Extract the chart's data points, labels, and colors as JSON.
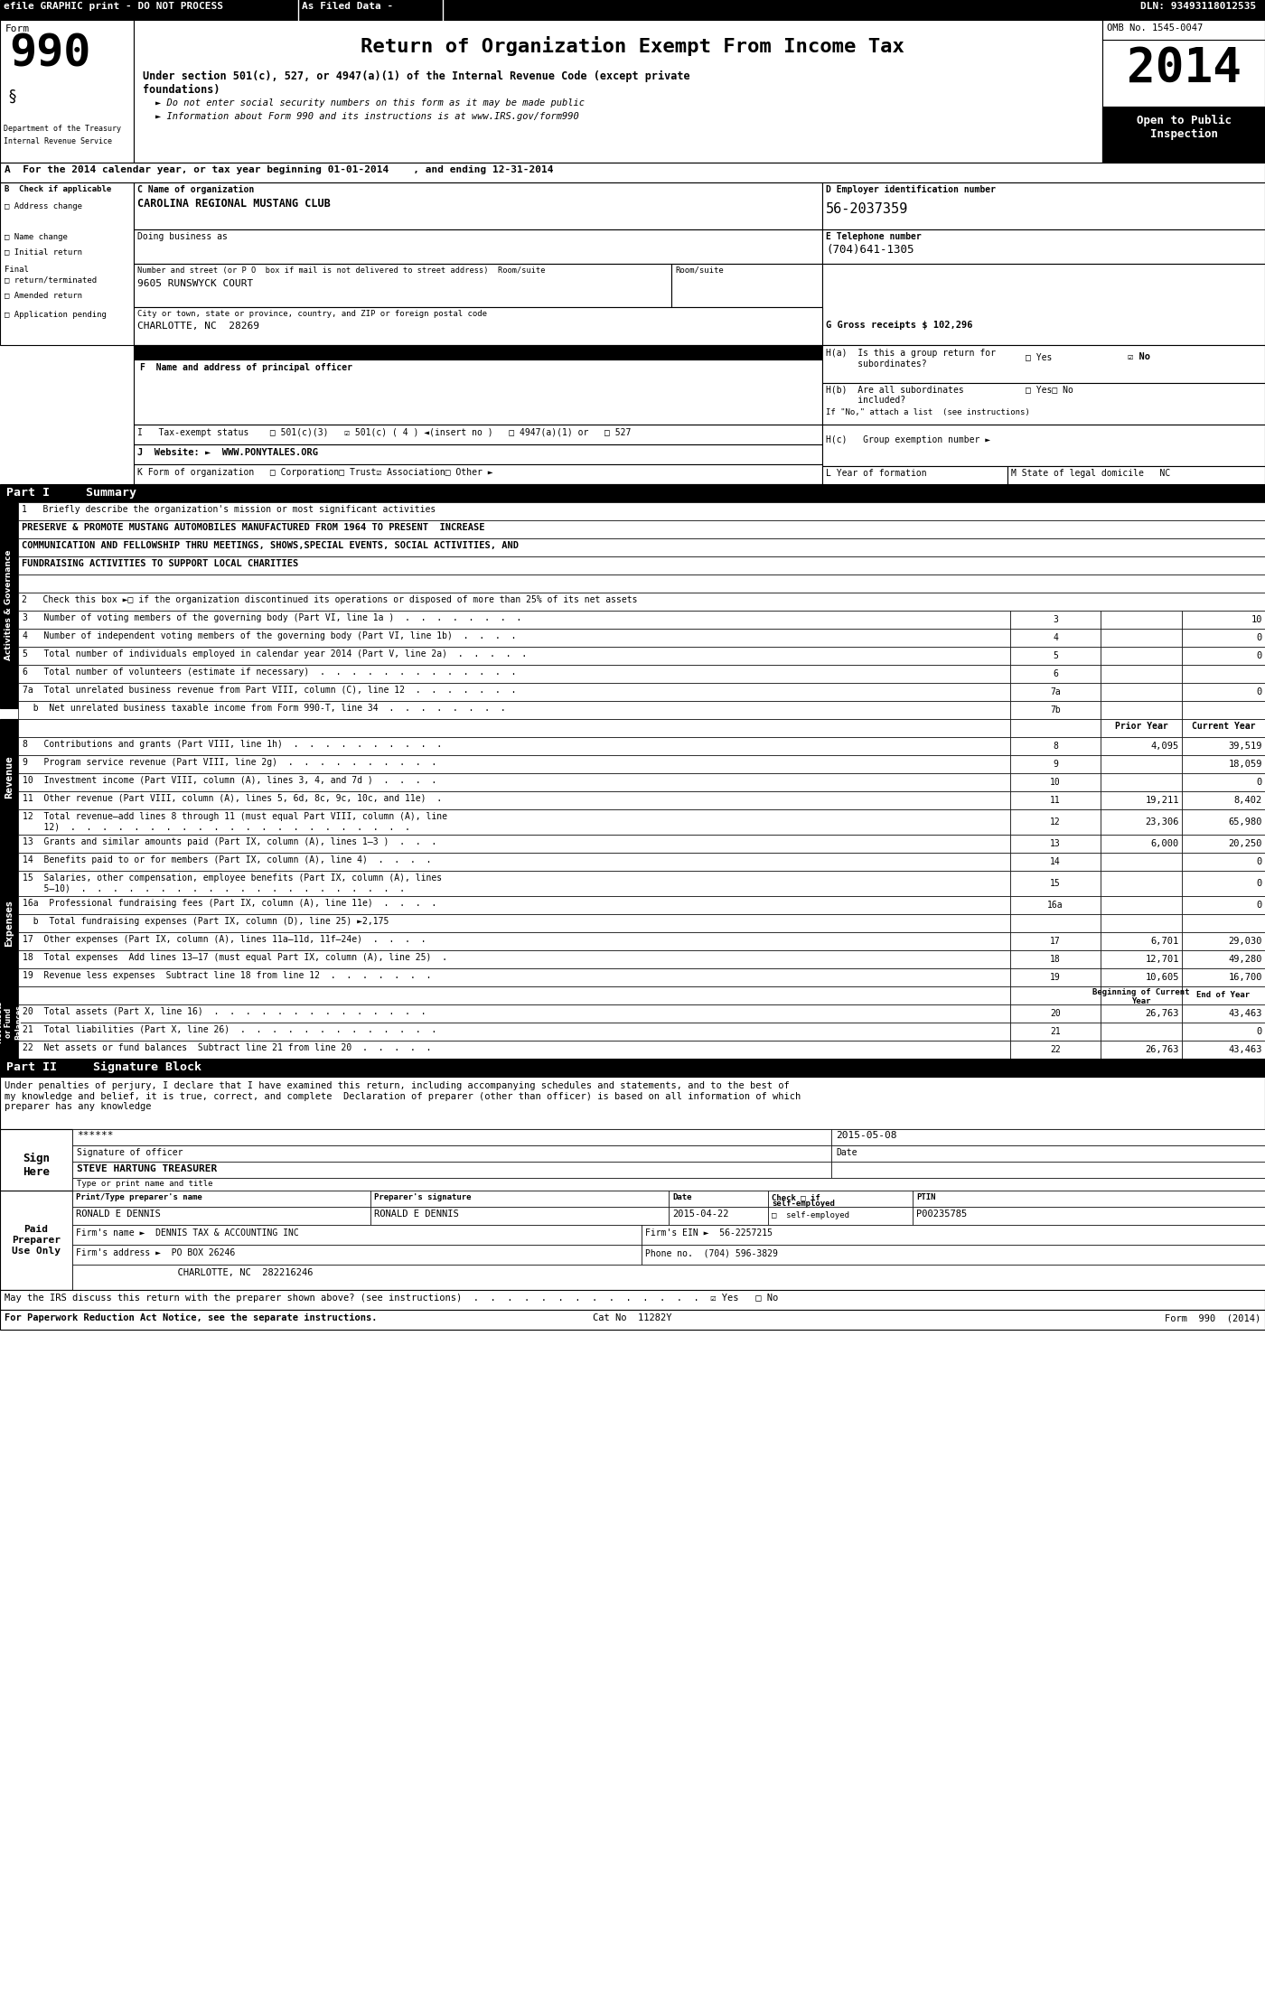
{
  "title": "Return of Organization Exempt From Income Tax",
  "subtitle1": "Under section 501(c), 527, or 4947(a)(1) of the Internal Revenue Code (except private",
  "subtitle1b": "foundations)",
  "subtitle2": "► Do not enter social security numbers on this form as it may be made public",
  "subtitle3": "► Information about Form 990 and its instructions is at www.IRS.gov/form990",
  "efile_left": "efile GRAPHIC print - DO NOT PROCESS",
  "efile_mid": "As Filed Data -",
  "efile_right": "DLN: 93493118012535",
  "form_number": "990",
  "year": "2014",
  "omb": "OMB No. 1545-0047",
  "open_to_public": "Open to Public\nInspection",
  "dept": "Department of the Treasury",
  "irs": "Internal Revenue Service",
  "section_a": "A  For the 2014 calendar year, or tax year beginning 01-01-2014    , and ending 12-31-2014",
  "org_name_label": "C Name of organization",
  "org_name": "CAROLINA REGIONAL MUSTANG CLUB",
  "dba_label": "Doing business as",
  "ein_label": "D Employer identification number",
  "ein": "56-2037359",
  "address_label": "Number and street (or P O  box if mail is not delivered to street address)  Room/suite",
  "address": "9605 RUNSWYCK COURT",
  "room_suite_label": "Room/suite",
  "phone_label": "E Telephone number",
  "phone": "(704)641-1305",
  "city_label": "City or town, state or province, country, and ZIP or foreign postal code",
  "city": "CHARLOTTE, NC  28269",
  "gross_label": "G Gross receipts $",
  "gross_receipts": "G Gross receipts $ 102,296",
  "principal_officer_label": "F  Name and address of principal officer",
  "ha_line1": "H(a)  Is this a group return for",
  "ha_line2": "      subordinates?",
  "ha_yes": "□ Yes",
  "ha_no": "☑ No",
  "hb_line1": "H(b)  Are all subordinates",
  "hb_line2": "      included?",
  "hb_yes": "□ Yes",
  "hb_no": "□ No",
  "hb_note": "If \"No,\" attach a list  (see instructions)",
  "tax_status": "I   Tax-exempt status    □ 501(c)(3)   ☑ 501(c) ( 4 ) ◄(insert no )   □ 4947(a)(1) or   □ 527",
  "website": "J  Website: ►  WWW.PONYTALES.ORG",
  "hc_label": "H(c)   Group exemption number ►",
  "form_org": "K Form of organization   □ Corporation□ Trust☑ Association□ Other ►",
  "year_formed": "L Year of formation",
  "state_domicile": "M State of legal domicile   NC",
  "part1_title": "Part I     Summary",
  "activity_label": "1   Briefly describe the organization's mission or most significant activities",
  "activity_text1": "PRESERVE & PROMOTE MUSTANG AUTOMOBILES MANUFACTURED FROM 1964 TO PRESENT  INCREASE",
  "activity_text2": "COMMUNICATION AND FELLOWSHIP THRU MEETINGS, SHOWS,SPECIAL EVENTS, SOCIAL ACTIVITIES, AND",
  "activity_text3": "FUNDRAISING ACTIVITIES TO SUPPORT LOCAL CHARITIES",
  "line2": "2   Check this box ►□ if the organization discontinued its operations or disposed of more than 25% of its net assets",
  "line3": "3   Number of voting members of the governing body (Part VI, line 1a )  .  .  .  .  .  .  .  .",
  "line3_num": "3",
  "line3_val": "10",
  "line4": "4   Number of independent voting members of the governing body (Part VI, line 1b)  .  .  .  .",
  "line4_num": "4",
  "line4_val": "0",
  "line5": "5   Total number of individuals employed in calendar year 2014 (Part V, line 2a)  .  .  .  .  .",
  "line5_num": "5",
  "line5_val": "0",
  "line6": "6   Total number of volunteers (estimate if necessary)  .  .  .  .  .  .  .  .  .  .  .  .  .",
  "line6_num": "6",
  "line6_val": "",
  "line7a": "7a  Total unrelated business revenue from Part VIII, column (C), line 12  .  .  .  .  .  .  .",
  "line7a_num": "7a",
  "line7a_val": "0",
  "line7b": "  b  Net unrelated business taxable income from Form 990-T, line 34  .  .  .  .  .  .  .  .",
  "line7b_num": "7b",
  "line7b_val": "",
  "prior_year_label": "Prior Year",
  "current_year_label": "Current Year",
  "line8": "8   Contributions and grants (Part VIII, line 1h)  .  .  .  .  .  .  .  .  .  .",
  "line8_num": "8",
  "line8_prior": "4,095",
  "line8_curr": "39,519",
  "line9": "9   Program service revenue (Part VIII, line 2g)  .  .  .  .  .  .  .  .  .  .",
  "line9_num": "9",
  "line9_prior": "",
  "line9_curr": "18,059",
  "line10": "10  Investment income (Part VIII, column (A), lines 3, 4, and 7d )  .  .  .  .",
  "line10_num": "10",
  "line10_prior": "",
  "line10_curr": "0",
  "line11": "11  Other revenue (Part VIII, column (A), lines 5, 6d, 8c, 9c, 10c, and 11e)  .",
  "line11_num": "11",
  "line11_prior": "19,211",
  "line11_curr": "8,402",
  "line12a": "12  Total revenue—add lines 8 through 11 (must equal Part VIII, column (A), line",
  "line12b": "    12)  .  .  .  .  .  .  .  .  .  .  .  .  .  .  .  .  .  .  .  .  .  .",
  "line12_num": "12",
  "line12_prior": "23,306",
  "line12_curr": "65,980",
  "line13": "13  Grants and similar amounts paid (Part IX, column (A), lines 1–3 )  .  .  .",
  "line13_num": "13",
  "line13_prior": "6,000",
  "line13_curr": "20,250",
  "line14": "14  Benefits paid to or for members (Part IX, column (A), line 4)  .  .  .  .",
  "line14_num": "14",
  "line14_prior": "",
  "line14_curr": "0",
  "line15a": "15  Salaries, other compensation, employee benefits (Part IX, column (A), lines",
  "line15b": "    5–10)  .  .  .  .  .  .  .  .  .  .  .  .  .  .  .  .  .  .  .  .  .",
  "line15_num": "15",
  "line15_prior": "",
  "line15_curr": "0",
  "line16a_text": "16a  Professional fundraising fees (Part IX, column (A), line 11e)  .  .  .  .",
  "line16a_num": "16a",
  "line16a_prior": "",
  "line16a_curr": "0",
  "line16b_text": "  b  Total fundraising expenses (Part IX, column (D), line 25) ►2,175",
  "line17": "17  Other expenses (Part IX, column (A), lines 11a–11d, 11f–24e)  .  .  .  .",
  "line17_num": "17",
  "line17_prior": "6,701",
  "line17_curr": "29,030",
  "line18": "18  Total expenses  Add lines 13–17 (must equal Part IX, column (A), line 25)  .",
  "line18_num": "18",
  "line18_prior": "12,701",
  "line18_curr": "49,280",
  "line19": "19  Revenue less expenses  Subtract line 18 from line 12  .  .  .  .  .  .  .",
  "line19_num": "19",
  "line19_prior": "10,605",
  "line19_curr": "16,700",
  "boc_label": "Beginning of Current\nYear",
  "eoy_label": "End of Year",
  "line20": "20  Total assets (Part X, line 16)  .  .  .  .  .  .  .  .  .  .  .  .  .  .",
  "line20_num": "20",
  "line20_boc": "26,763",
  "line20_eoy": "43,463",
  "line21": "21  Total liabilities (Part X, line 26)  .  .  .  .  .  .  .  .  .  .  .  .  .",
  "line21_num": "21",
  "line21_boc": "",
  "line21_eoy": "0",
  "line22": "22  Net assets or fund balances  Subtract line 21 from line 20  .  .  .  .  .",
  "line22_num": "22",
  "line22_boc": "26,763",
  "line22_eoy": "43,463",
  "part2_title": "Part II     Signature Block",
  "sig_declaration": "Under penalties of perjury, I declare that I have examined this return, including accompanying schedules and statements, and to the best of\nmy knowledge and belief, it is true, correct, and complete  Declaration of preparer (other than officer) is based on all information of which\npreparer has any knowledge",
  "sig_stars": "******",
  "sig_date": "2015-05-08",
  "sig_label": "Signature of officer",
  "sig_date_label": "Date",
  "sig_name": "STEVE HARTUNG TREASURER",
  "sig_title_label": "Type or print name and title",
  "sign_here": "Sign\nHere",
  "preparer_name_label": "Print/Type preparer's name",
  "preparer_sig_label": "Preparer's signature",
  "date_label2": "Date",
  "check_label": "Check □ if",
  "check_label2": "self-employed",
  "ptin_label": "PTIN",
  "preparer_name": "RONALD E DENNIS",
  "preparer_sig": "RONALD E DENNIS",
  "preparer_date": "2015-04-22",
  "preparer_ptin": "P00235785",
  "firm_name_label": "Firm's name ►",
  "firm_name": "DENNIS TAX & ACCOUNTING INC",
  "firm_ein_label": "Firm's EIN ►",
  "firm_ein": "56-2257215",
  "firm_address_label": "Firm's address ►",
  "firm_address": "PO BOX 26246",
  "phone_no_label": "Phone no.",
  "firm_phone": "(704) 596-3829",
  "firm_city": "CHARLOTTE, NC  282216246",
  "may_discuss": "May the IRS discuss this return with the preparer shown above? (see instructions)  .  .  .  .  .  .  .  .  .  .  .  .  .  .  ☑ Yes   □ No",
  "paperwork_note": "For Paperwork Reduction Act Notice, see the separate instructions.",
  "cat_no": "Cat No  11282Y",
  "form_footer": "Form 990 (2014)",
  "paid_preparer": "Paid\nPreparer\nUse Only",
  "bg_color": "#ffffff",
  "black": "#000000",
  "white": "#ffffff"
}
